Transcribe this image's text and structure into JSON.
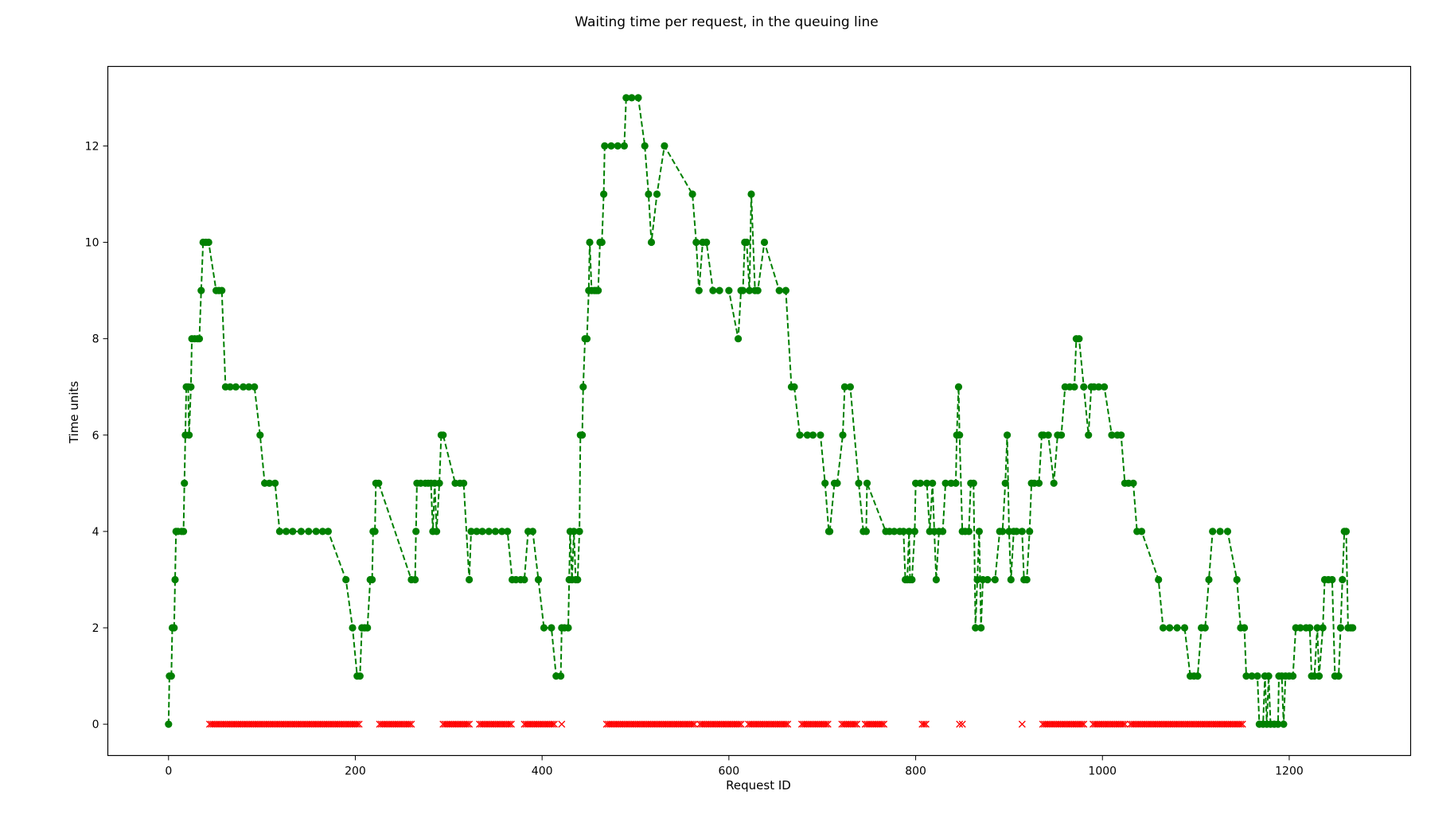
{
  "chart_data": {
    "type": "line",
    "title": "Waiting time per request, in the queuing line",
    "xlabel": "Request ID",
    "ylabel": "Time units",
    "xlim": [
      -65,
      1330
    ],
    "ylim": [
      -0.65,
      13.65
    ],
    "xticks": [
      0,
      200,
      400,
      600,
      800,
      1000,
      1200
    ],
    "yticks": [
      0,
      2,
      4,
      6,
      8,
      10,
      12
    ],
    "grid": false,
    "colors": {
      "waiting_line": "#008000",
      "waiting_marker": "#008000",
      "no_wait_marker": "#ff0000"
    },
    "series": [
      {
        "style": "green dashed line with circle markers",
        "points": [
          [
            0,
            0
          ],
          [
            1,
            1
          ],
          [
            3,
            1
          ],
          [
            4,
            2
          ],
          [
            6,
            2
          ],
          [
            7,
            3
          ],
          [
            8,
            4
          ],
          [
            10,
            4
          ],
          [
            14,
            4
          ],
          [
            16,
            4
          ],
          [
            17,
            5
          ],
          [
            18,
            6
          ],
          [
            19,
            7
          ],
          [
            21,
            7
          ],
          [
            22,
            6
          ],
          [
            24,
            7
          ],
          [
            25,
            8
          ],
          [
            28,
            8
          ],
          [
            31,
            8
          ],
          [
            33,
            8
          ],
          [
            35,
            9
          ],
          [
            37,
            10
          ],
          [
            40,
            10
          ],
          [
            43,
            10
          ],
          [
            51,
            9
          ],
          [
            54,
            9
          ],
          [
            57,
            9
          ],
          [
            61,
            7
          ],
          [
            66,
            7
          ],
          [
            72,
            7
          ],
          [
            80,
            7
          ],
          [
            86,
            7
          ],
          [
            92,
            7
          ],
          [
            98,
            6
          ],
          [
            103,
            5
          ],
          [
            108,
            5
          ],
          [
            114,
            5
          ],
          [
            119,
            4
          ],
          [
            126,
            4
          ],
          [
            133,
            4
          ],
          [
            142,
            4
          ],
          [
            150,
            4
          ],
          [
            158,
            4
          ],
          [
            165,
            4
          ],
          [
            171,
            4
          ],
          [
            190,
            3
          ],
          [
            197,
            2
          ],
          [
            202,
            1
          ],
          [
            205,
            1
          ],
          [
            207,
            2
          ],
          [
            210,
            2
          ],
          [
            213,
            2
          ],
          [
            216,
            3
          ],
          [
            218,
            3
          ],
          [
            219,
            4
          ],
          [
            221,
            4
          ],
          [
            222,
            5
          ],
          [
            225,
            5
          ],
          [
            260,
            3
          ],
          [
            264,
            3
          ],
          [
            265,
            4
          ],
          [
            266,
            5
          ],
          [
            270,
            5
          ],
          [
            275,
            5
          ],
          [
            278,
            5
          ],
          [
            281,
            5
          ],
          [
            283,
            4
          ],
          [
            285,
            5
          ],
          [
            287,
            4
          ],
          [
            290,
            5
          ],
          [
            292,
            6
          ],
          [
            294,
            6
          ],
          [
            307,
            5
          ],
          [
            312,
            5
          ],
          [
            316,
            5
          ],
          [
            322,
            3
          ],
          [
            324,
            4
          ],
          [
            330,
            4
          ],
          [
            336,
            4
          ],
          [
            343,
            4
          ],
          [
            350,
            4
          ],
          [
            357,
            4
          ],
          [
            363,
            4
          ],
          [
            368,
            3
          ],
          [
            372,
            3
          ],
          [
            377,
            3
          ],
          [
            381,
            3
          ],
          [
            385,
            4
          ],
          [
            390,
            4
          ],
          [
            396,
            3
          ],
          [
            402,
            2
          ],
          [
            410,
            2
          ],
          [
            415,
            1
          ],
          [
            420,
            1
          ],
          [
            421,
            2
          ],
          [
            424,
            2
          ],
          [
            428,
            2
          ],
          [
            429,
            3
          ],
          [
            430,
            4
          ],
          [
            432,
            3
          ],
          [
            434,
            4
          ],
          [
            436,
            3
          ],
          [
            438,
            3
          ],
          [
            440,
            4
          ],
          [
            441,
            6
          ],
          [
            443,
            6
          ],
          [
            444,
            7
          ],
          [
            446,
            8
          ],
          [
            448,
            8
          ],
          [
            450,
            9
          ],
          [
            451,
            10
          ],
          [
            453,
            9
          ],
          [
            456,
            9
          ],
          [
            458,
            9
          ],
          [
            460,
            9
          ],
          [
            462,
            10
          ],
          [
            464,
            10
          ],
          [
            466,
            11
          ],
          [
            467,
            12
          ],
          [
            474,
            12
          ],
          [
            481,
            12
          ],
          [
            488,
            12
          ],
          [
            490,
            13
          ],
          [
            496,
            13
          ],
          [
            503,
            13
          ],
          [
            510,
            12
          ],
          [
            514,
            11
          ],
          [
            517,
            10
          ],
          [
            523,
            11
          ],
          [
            531,
            12
          ],
          [
            561,
            11
          ],
          [
            565,
            10
          ],
          [
            568,
            9
          ],
          [
            572,
            10
          ],
          [
            576,
            10
          ],
          [
            583,
            9
          ],
          [
            590,
            9
          ],
          [
            600,
            9
          ],
          [
            610,
            8
          ],
          [
            613,
            9
          ],
          [
            615,
            9
          ],
          [
            617,
            10
          ],
          [
            619,
            10
          ],
          [
            622,
            9
          ],
          [
            624,
            11
          ],
          [
            628,
            9
          ],
          [
            631,
            9
          ],
          [
            638,
            10
          ],
          [
            654,
            9
          ],
          [
            661,
            9
          ],
          [
            667,
            7
          ],
          [
            670,
            7
          ],
          [
            676,
            6
          ],
          [
            684,
            6
          ],
          [
            690,
            6
          ],
          [
            698,
            6
          ],
          [
            703,
            5
          ],
          [
            707,
            4
          ],
          [
            708,
            4
          ],
          [
            713,
            5
          ],
          [
            716,
            5
          ],
          [
            722,
            6
          ],
          [
            724,
            7
          ],
          [
            730,
            7
          ],
          [
            739,
            5
          ],
          [
            744,
            4
          ],
          [
            747,
            4
          ],
          [
            748,
            5
          ],
          [
            768,
            4
          ],
          [
            772,
            4
          ],
          [
            777,
            4
          ],
          [
            783,
            4
          ],
          [
            787,
            4
          ],
          [
            789,
            3
          ],
          [
            791,
            3
          ],
          [
            793,
            4
          ],
          [
            794,
            3
          ],
          [
            796,
            3
          ],
          [
            799,
            4
          ],
          [
            800,
            5
          ],
          [
            805,
            5
          ],
          [
            812,
            5
          ],
          [
            815,
            4
          ],
          [
            818,
            5
          ],
          [
            820,
            4
          ],
          [
            822,
            3
          ],
          [
            825,
            4
          ],
          [
            829,
            4
          ],
          [
            832,
            5
          ],
          [
            838,
            5
          ],
          [
            843,
            5
          ],
          [
            844,
            6
          ],
          [
            846,
            7
          ],
          [
            847,
            6
          ],
          [
            850,
            4
          ],
          [
            853,
            4
          ],
          [
            857,
            4
          ],
          [
            859,
            5
          ],
          [
            862,
            5
          ],
          [
            864,
            2
          ],
          [
            866,
            3
          ],
          [
            868,
            4
          ],
          [
            870,
            2
          ],
          [
            872,
            3
          ],
          [
            877,
            3
          ],
          [
            885,
            3
          ],
          [
            890,
            4
          ],
          [
            893,
            4
          ],
          [
            896,
            5
          ],
          [
            898,
            6
          ],
          [
            900,
            4
          ],
          [
            902,
            3
          ],
          [
            905,
            4
          ],
          [
            908,
            4
          ],
          [
            914,
            4
          ],
          [
            916,
            3
          ],
          [
            919,
            3
          ],
          [
            922,
            4
          ],
          [
            924,
            5
          ],
          [
            927,
            5
          ],
          [
            932,
            5
          ],
          [
            935,
            6
          ],
          [
            937,
            6
          ],
          [
            942,
            6
          ],
          [
            948,
            5
          ],
          [
            952,
            6
          ],
          [
            956,
            6
          ],
          [
            960,
            7
          ],
          [
            965,
            7
          ],
          [
            970,
            7
          ],
          [
            972,
            8
          ],
          [
            975,
            8
          ],
          [
            980,
            7
          ],
          [
            985,
            6
          ],
          [
            988,
            7
          ],
          [
            991,
            7
          ],
          [
            996,
            7
          ],
          [
            1002,
            7
          ],
          [
            1010,
            6
          ],
          [
            1016,
            6
          ],
          [
            1020,
            6
          ],
          [
            1024,
            5
          ],
          [
            1028,
            5
          ],
          [
            1033,
            5
          ],
          [
            1037,
            4
          ],
          [
            1042,
            4
          ],
          [
            1060,
            3
          ],
          [
            1065,
            2
          ],
          [
            1072,
            2
          ],
          [
            1080,
            2
          ],
          [
            1088,
            2
          ],
          [
            1094,
            1
          ],
          [
            1098,
            1
          ],
          [
            1102,
            1
          ],
          [
            1106,
            2
          ],
          [
            1110,
            2
          ],
          [
            1114,
            3
          ],
          [
            1118,
            4
          ],
          [
            1126,
            4
          ],
          [
            1134,
            4
          ],
          [
            1144,
            3
          ],
          [
            1148,
            2
          ],
          [
            1152,
            2
          ],
          [
            1154,
            1
          ],
          [
            1160,
            1
          ],
          [
            1166,
            1
          ],
          [
            1168,
            0
          ],
          [
            1172,
            0
          ],
          [
            1174,
            1
          ],
          [
            1176,
            0
          ],
          [
            1178,
            1
          ],
          [
            1180,
            0
          ],
          [
            1184,
            0
          ],
          [
            1188,
            0
          ],
          [
            1189,
            1
          ],
          [
            1192,
            1
          ],
          [
            1194,
            0
          ],
          [
            1196,
            1
          ],
          [
            1200,
            1
          ],
          [
            1204,
            1
          ],
          [
            1207,
            2
          ],
          [
            1212,
            2
          ],
          [
            1218,
            2
          ],
          [
            1222,
            2
          ],
          [
            1224,
            1
          ],
          [
            1227,
            1
          ],
          [
            1230,
            2
          ],
          [
            1232,
            1
          ],
          [
            1236,
            2
          ],
          [
            1238,
            3
          ],
          [
            1242,
            3
          ],
          [
            1246,
            3
          ],
          [
            1249,
            1
          ],
          [
            1253,
            1
          ],
          [
            1255,
            2
          ],
          [
            1257,
            3
          ],
          [
            1259,
            4
          ],
          [
            1261,
            4
          ],
          [
            1263,
            2
          ],
          [
            1266,
            2
          ],
          [
            1268,
            2
          ]
        ]
      },
      {
        "style": "red x markers, no line",
        "x_runs": [
          [
            44,
            204,
            2
          ],
          [
            226,
            260,
            2
          ],
          [
            294,
            322,
            2
          ],
          [
            333,
            368,
            2
          ],
          [
            381,
            414,
            2
          ],
          [
            421,
            421,
            1
          ],
          [
            469,
            563,
            2
          ],
          [
            569,
            614,
            2
          ],
          [
            621,
            664,
            2
          ],
          [
            678,
            706,
            2
          ],
          [
            721,
            737,
            2
          ],
          [
            746,
            767,
            2
          ],
          [
            807,
            811,
            2
          ],
          [
            847,
            850,
            3
          ],
          [
            914,
            914,
            1
          ],
          [
            936,
            980,
            2
          ],
          [
            990,
            1025,
            2
          ],
          [
            1030,
            1150,
            2
          ]
        ],
        "y": 0
      }
    ]
  }
}
